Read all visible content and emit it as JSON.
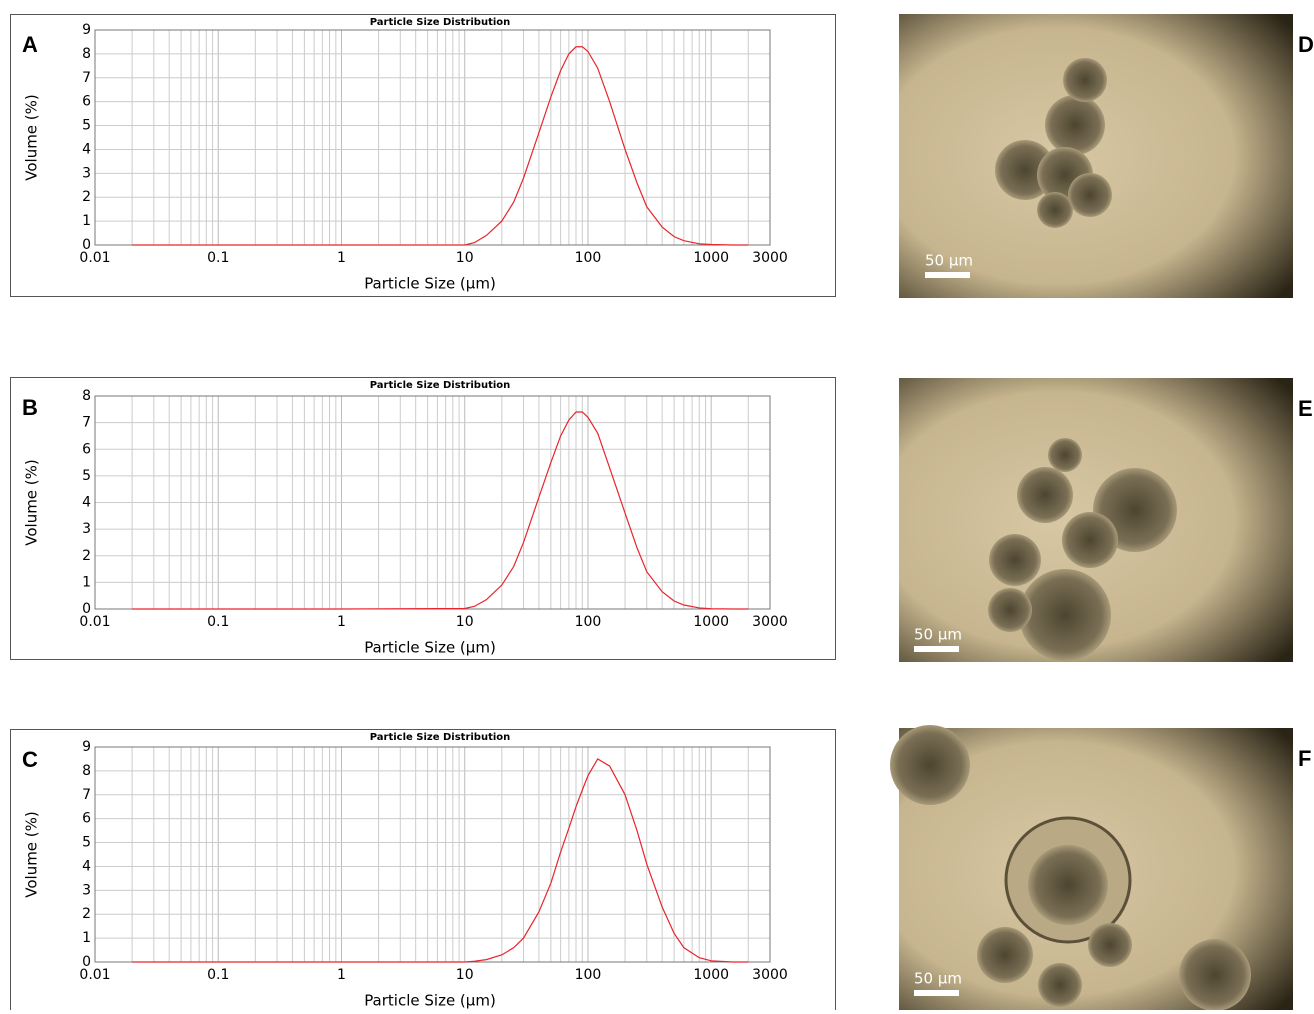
{
  "chart_data": [
    {
      "type": "line",
      "label": "A",
      "title": "Particle Size Distribution",
      "x_label": "Particle Size (µm)",
      "y_label": "Volume (%)",
      "x_scale": "log",
      "grid": true,
      "xlim": [
        0.01,
        3000
      ],
      "xticks": [
        0.01,
        0.1,
        1,
        10,
        100,
        1000,
        3000
      ],
      "minor_xticks": [
        0.02,
        0.03,
        0.04,
        0.05,
        0.06,
        0.07,
        0.08,
        0.09,
        0.2,
        0.3,
        0.4,
        0.5,
        0.6,
        0.7,
        0.8,
        0.9,
        2,
        3,
        4,
        5,
        6,
        7,
        8,
        9,
        20,
        30,
        40,
        50,
        60,
        70,
        80,
        90,
        200,
        300,
        400,
        500,
        600,
        700,
        800,
        900,
        2000
      ],
      "ylim": [
        0,
        9
      ],
      "yticks": [
        0,
        1,
        2,
        3,
        4,
        5,
        6,
        7,
        8,
        9
      ],
      "x": [
        0.02,
        0.1,
        1,
        10,
        12,
        15,
        20,
        25,
        30,
        40,
        50,
        60,
        70,
        80,
        90,
        100,
        120,
        150,
        200,
        250,
        300,
        400,
        500,
        600,
        800,
        1000,
        1500,
        2000
      ],
      "series": [
        {
          "color": "#e8242c",
          "values": [
            0,
            0,
            0,
            0,
            0.1,
            0.4,
            1.0,
            1.8,
            2.8,
            4.7,
            6.2,
            7.3,
            8.0,
            8.3,
            8.3,
            8.1,
            7.4,
            6.0,
            4.0,
            2.6,
            1.6,
            0.75,
            0.35,
            0.18,
            0.05,
            0.02,
            0,
            0
          ]
        }
      ]
    },
    {
      "type": "line",
      "label": "B",
      "title": "Particle Size Distribution",
      "x_label": "Particle Size (µm)",
      "y_label": "Volume (%)",
      "x_scale": "log",
      "grid": true,
      "xlim": [
        0.01,
        3000
      ],
      "xticks": [
        0.01,
        0.1,
        1,
        10,
        100,
        1000,
        3000
      ],
      "minor_xticks": [
        0.02,
        0.03,
        0.04,
        0.05,
        0.06,
        0.07,
        0.08,
        0.09,
        0.2,
        0.3,
        0.4,
        0.5,
        0.6,
        0.7,
        0.8,
        0.9,
        2,
        3,
        4,
        5,
        6,
        7,
        8,
        9,
        20,
        30,
        40,
        50,
        60,
        70,
        80,
        90,
        200,
        300,
        400,
        500,
        600,
        700,
        800,
        900,
        2000
      ],
      "ylim": [
        0,
        8
      ],
      "yticks": [
        0,
        1,
        2,
        3,
        4,
        5,
        6,
        7,
        8
      ],
      "x": [
        0.02,
        0.1,
        1,
        10,
        12,
        15,
        20,
        25,
        30,
        40,
        50,
        60,
        70,
        80,
        90,
        100,
        120,
        150,
        200,
        250,
        300,
        400,
        500,
        600,
        800,
        1000,
        1500,
        2000
      ],
      "series": [
        {
          "color": "#e8242c",
          "values": [
            0,
            0,
            0,
            0.02,
            0.1,
            0.35,
            0.9,
            1.6,
            2.5,
            4.2,
            5.5,
            6.5,
            7.1,
            7.4,
            7.4,
            7.2,
            6.6,
            5.3,
            3.6,
            2.3,
            1.4,
            0.65,
            0.3,
            0.15,
            0.04,
            0.01,
            0,
            0
          ]
        }
      ]
    },
    {
      "type": "line",
      "label": "C",
      "title": "Particle Size Distribution",
      "x_label": "Particle Size (µm)",
      "y_label": "Volume (%)",
      "x_scale": "log",
      "grid": true,
      "xlim": [
        0.01,
        3000
      ],
      "xticks": [
        0.01,
        0.1,
        1,
        10,
        100,
        1000,
        3000
      ],
      "minor_xticks": [
        0.02,
        0.03,
        0.04,
        0.05,
        0.06,
        0.07,
        0.08,
        0.09,
        0.2,
        0.3,
        0.4,
        0.5,
        0.6,
        0.7,
        0.8,
        0.9,
        2,
        3,
        4,
        5,
        6,
        7,
        8,
        9,
        20,
        30,
        40,
        50,
        60,
        70,
        80,
        90,
        200,
        300,
        400,
        500,
        600,
        700,
        800,
        900,
        2000
      ],
      "ylim": [
        0,
        9
      ],
      "yticks": [
        0,
        1,
        2,
        3,
        4,
        5,
        6,
        7,
        8,
        9
      ],
      "x": [
        0.02,
        0.1,
        1,
        10,
        12,
        15,
        20,
        25,
        30,
        40,
        50,
        60,
        70,
        80,
        90,
        100,
        120,
        150,
        200,
        250,
        300,
        400,
        500,
        600,
        800,
        1000,
        1500,
        2000
      ],
      "series": [
        {
          "color": "#e8242c",
          "values": [
            0,
            0,
            0,
            0,
            0.03,
            0.1,
            0.3,
            0.6,
            1.0,
            2.1,
            3.3,
            4.6,
            5.6,
            6.5,
            7.2,
            7.8,
            8.5,
            8.2,
            7.0,
            5.5,
            4.1,
            2.3,
            1.2,
            0.6,
            0.18,
            0.05,
            0,
            0
          ]
        }
      ]
    }
  ],
  "images": [
    {
      "label": "D",
      "scale_bar": "50 µm"
    },
    {
      "label": "E",
      "scale_bar": "50 µm"
    },
    {
      "label": "F",
      "scale_bar": "50 µm"
    }
  ]
}
